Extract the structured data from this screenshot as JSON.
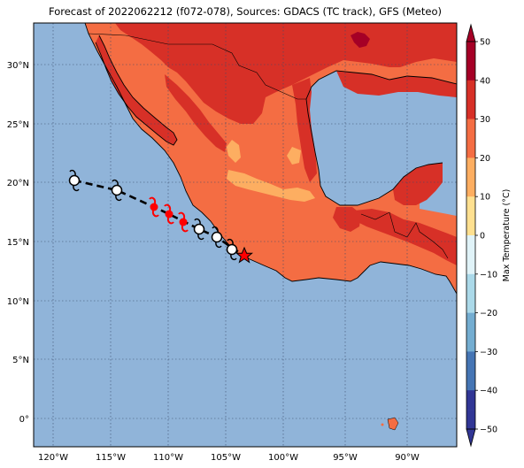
{
  "title": "Forecast of 2022062212 (f072-078), Sources: GDACS (TC track), GFS (Meteo)",
  "lat_ticks": [
    "30°N",
    "25°N",
    "20°N",
    "15°N",
    "10°N",
    "5°N",
    "0°"
  ],
  "lon_ticks": [
    "120°W",
    "115°W",
    "110°W",
    "105°W",
    "100°W",
    "95°W",
    "90°W"
  ],
  "colorbar": {
    "label": "Max Temperature (°C)",
    "ticks": [
      "50",
      "40",
      "30",
      "20",
      "10",
      "0",
      "−10",
      "−20",
      "−30",
      "−40",
      "−50"
    ],
    "colors_top_to_bottom": [
      "#a50026",
      "#d73027",
      "#f46d43",
      "#fdae61",
      "#fee090",
      "#ffffbf",
      "#e0f3f8",
      "#abd9e9",
      "#74add1",
      "#4575b4",
      "#313695"
    ]
  },
  "colors": {
    "ocean": "#90b4d9",
    "land_hot": "#d73027",
    "land_warm": "#f46d43",
    "land_mild": "#fdae61",
    "land_extreme": "#a50026",
    "track": "#000000",
    "marker_red": "#ff0000"
  },
  "track_icons": {
    "past": "hurricane-symbol-white",
    "forecast_current": "hurricane-symbol-red",
    "current_position": "red-star"
  }
}
